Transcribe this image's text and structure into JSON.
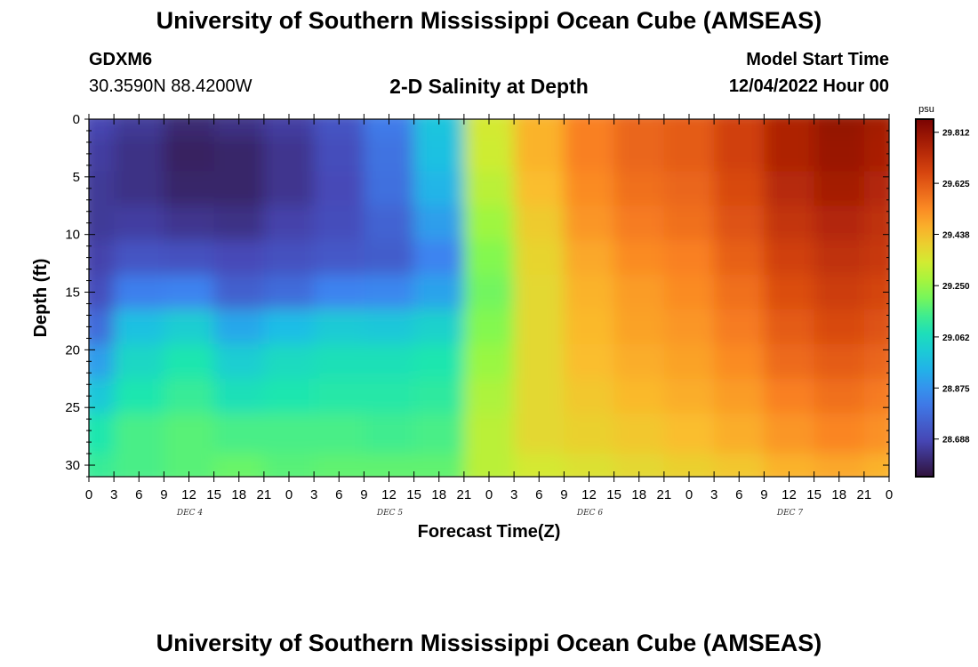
{
  "header": {
    "title": "University of Southern Mississippi Ocean Cube (AMSEAS)",
    "station": "GDXM6",
    "coords": "30.3590N  88.4200W",
    "subtitle": "2-D Salinity at Depth",
    "model_start_label": "Model Start Time",
    "model_start_value": "12/04/2022 Hour 00"
  },
  "footer": {
    "title": "University of Southern Mississippi Ocean Cube (AMSEAS)"
  },
  "chart_data": {
    "type": "heatmap",
    "title": "2-D Salinity at Depth",
    "xlabel": "Forecast Time(Z)",
    "ylabel": "Depth (ft)",
    "x_ticks": [
      "0",
      "3",
      "6",
      "9",
      "12",
      "15",
      "18",
      "21",
      "0",
      "3",
      "6",
      "9",
      "12",
      "15",
      "18",
      "21",
      "0",
      "3",
      "6",
      "9",
      "12",
      "15",
      "18",
      "21",
      "0",
      "3",
      "6",
      "9",
      "12",
      "15",
      "18",
      "21",
      "0"
    ],
    "day_labels": [
      "DEC 4",
      "DEC 5",
      "DEC 6",
      "DEC 7"
    ],
    "y_ticks": [
      0,
      5,
      10,
      15,
      20,
      25,
      30
    ],
    "ylim": [
      0,
      31
    ],
    "x_hours": [
      0,
      6,
      12,
      18,
      24,
      30,
      36,
      42,
      48,
      54,
      60,
      66,
      72,
      78,
      84,
      90,
      96
    ],
    "depths": [
      0,
      3,
      6,
      9,
      12,
      15,
      18,
      21,
      24,
      27,
      31
    ],
    "values": [
      [
        28.68,
        28.65,
        28.61,
        28.63,
        28.66,
        28.72,
        28.82,
        28.99,
        29.34,
        29.46,
        29.55,
        29.6,
        29.62,
        29.68,
        29.76,
        29.81,
        29.78
      ],
      [
        28.66,
        28.63,
        28.59,
        28.6,
        28.64,
        28.7,
        28.8,
        28.98,
        29.33,
        29.46,
        29.55,
        29.6,
        29.62,
        29.68,
        29.76,
        29.8,
        29.77
      ],
      [
        28.65,
        28.63,
        28.6,
        28.6,
        28.64,
        28.69,
        28.79,
        28.95,
        29.3,
        29.44,
        29.53,
        29.58,
        29.6,
        29.66,
        29.74,
        29.78,
        29.75
      ],
      [
        28.65,
        28.66,
        28.64,
        28.63,
        28.67,
        28.7,
        28.76,
        28.9,
        29.26,
        29.41,
        29.51,
        29.56,
        29.58,
        29.64,
        29.71,
        29.75,
        29.72
      ],
      [
        28.67,
        28.72,
        28.71,
        28.69,
        28.71,
        28.73,
        28.74,
        28.84,
        29.22,
        29.39,
        29.48,
        29.53,
        29.55,
        29.61,
        29.68,
        29.72,
        29.7
      ],
      [
        28.7,
        28.83,
        28.84,
        28.75,
        28.78,
        28.84,
        28.85,
        28.91,
        29.2,
        29.38,
        29.46,
        29.5,
        29.53,
        29.58,
        29.65,
        29.69,
        29.67
      ],
      [
        28.78,
        28.98,
        29.02,
        28.92,
        28.97,
        29.01,
        29.0,
        29.03,
        29.22,
        29.38,
        29.45,
        29.49,
        29.51,
        29.56,
        29.62,
        29.66,
        29.64
      ],
      [
        28.9,
        29.05,
        29.1,
        29.02,
        29.06,
        29.08,
        29.08,
        29.1,
        29.25,
        29.38,
        29.44,
        29.47,
        29.49,
        29.53,
        29.59,
        29.62,
        29.6
      ],
      [
        29.0,
        29.1,
        29.13,
        29.08,
        29.1,
        29.11,
        29.11,
        29.12,
        29.28,
        29.38,
        29.42,
        29.45,
        29.47,
        29.5,
        29.55,
        29.58,
        29.56
      ],
      [
        29.1,
        29.15,
        29.17,
        29.15,
        29.15,
        29.15,
        29.14,
        29.15,
        29.3,
        29.38,
        29.4,
        29.42,
        29.44,
        29.47,
        29.51,
        29.54,
        29.52
      ],
      [
        29.13,
        29.15,
        29.17,
        29.19,
        29.17,
        29.18,
        29.18,
        29.18,
        29.3,
        29.34,
        29.36,
        29.38,
        29.4,
        29.42,
        29.46,
        29.48,
        29.46
      ]
    ],
    "colorbar": {
      "unit": "psu",
      "ticks": [
        29.812,
        29.625,
        29.438,
        29.25,
        29.062,
        28.875,
        28.688
      ],
      "range": [
        28.55,
        29.86
      ]
    }
  }
}
